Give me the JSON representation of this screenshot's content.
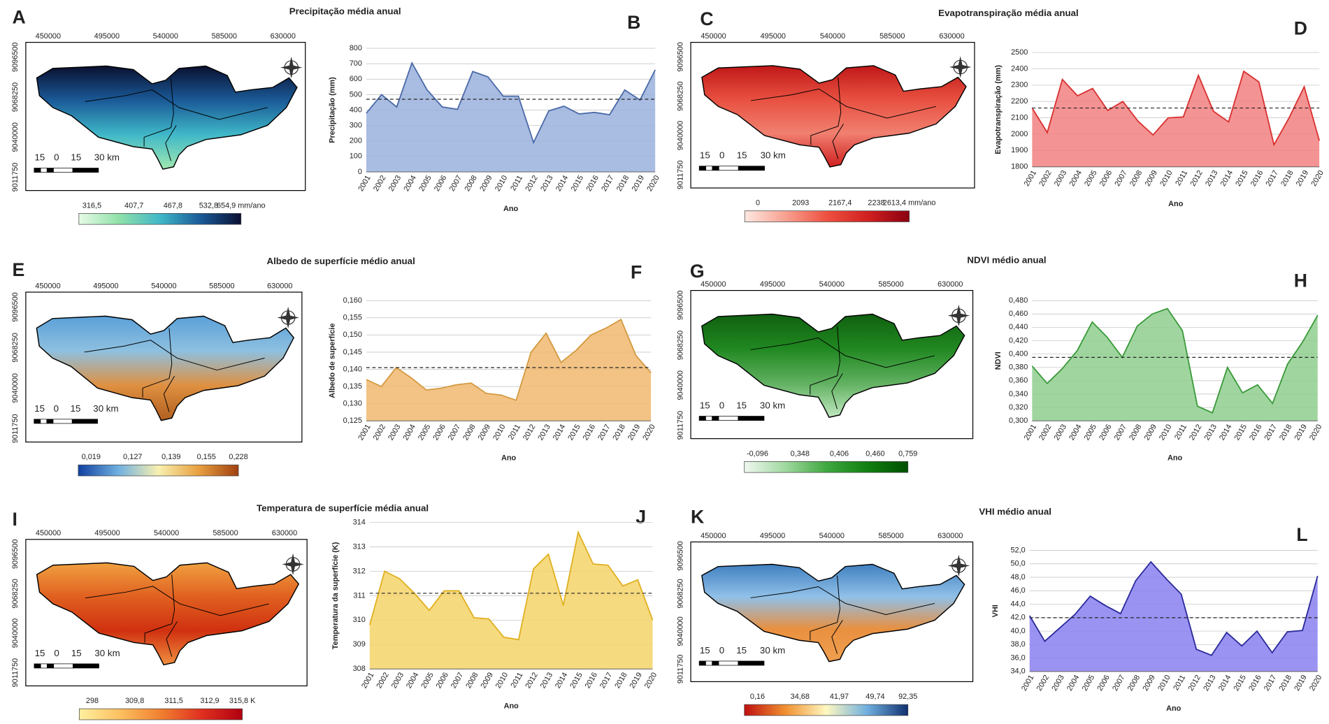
{
  "maps": [
    {
      "letter": "A",
      "title": "Precipitação média anual",
      "xticks": [
        450000,
        495000,
        540000,
        585000,
        630000
      ],
      "yticks": [
        9096500,
        9068250,
        9040000,
        9011750
      ],
      "scale_labels": [
        15,
        0,
        15,
        "30 km"
      ],
      "colorbar_labels": [
        "316,5",
        "407,7",
        "467,8",
        "532,8",
        "654,9 mm/ano"
      ],
      "colorbar_colors": [
        "#e6fbe6",
        "#8fe0a8",
        "#40b8c8",
        "#1a5a98",
        "#0a1030"
      ],
      "fill_colors": [
        "#0a1030",
        "#1a5a98",
        "#40b8c8",
        "#a0e8b0"
      ]
    },
    {
      "letter": "C",
      "title": "Evapotranspiração média anual",
      "xticks": [
        450000,
        495000,
        540000,
        585000,
        630000
      ],
      "yticks": [
        9096500,
        9068250,
        9040000,
        9011750
      ],
      "scale_labels": [
        15,
        0,
        15,
        "30 km"
      ],
      "colorbar_labels": [
        "0",
        "2093",
        "2167,4",
        "2238",
        "2613,4 mm/ano"
      ],
      "colorbar_colors": [
        "#fde8e0",
        "#f8a090",
        "#ee5040",
        "#d02020",
        "#8a0010"
      ],
      "fill_colors": [
        "#c01818",
        "#e85040",
        "#f08070",
        "#d02020"
      ]
    },
    {
      "letter": "E",
      "title": "Albedo de superfície médio anual",
      "xticks": [
        450000,
        495000,
        540000,
        585000,
        630000
      ],
      "yticks": [
        9096500,
        9068250,
        9040000,
        9011750
      ],
      "scale_labels": [
        15,
        0,
        15,
        "30 km"
      ],
      "colorbar_labels": [
        "0,019",
        "0,127",
        "0,139",
        "0,155",
        "0,228"
      ],
      "colorbar_colors": [
        "#1040a0",
        "#70b0e0",
        "#f8f0b0",
        "#e8a040",
        "#a04010"
      ],
      "fill_colors": [
        "#5aa0d8",
        "#8ec0e0",
        "#e09040",
        "#b06020"
      ]
    },
    {
      "letter": "G",
      "title": "NDVI médio anual",
      "xticks": [
        450000,
        495000,
        540000,
        585000,
        630000
      ],
      "yticks": [
        9096500,
        9068250,
        9040000,
        9011750
      ],
      "scale_labels": [
        15,
        0,
        15,
        "30 km"
      ],
      "colorbar_labels": [
        "-0,096",
        "0,348",
        "0,406",
        "0,460",
        "0,759"
      ],
      "colorbar_colors": [
        "#f0f8f0",
        "#a0d8a0",
        "#40a840",
        "#108010",
        "#005000"
      ],
      "fill_colors": [
        "#106010",
        "#208820",
        "#60b060",
        "#c0e8c0"
      ]
    },
    {
      "letter": "I",
      "title": "Temperatura de superfície média anual",
      "xticks": [
        450000,
        495000,
        540000,
        585000,
        630000
      ],
      "yticks": [
        9096500,
        9068250,
        9040000,
        9011750
      ],
      "scale_labels": [
        15,
        0,
        15,
        "30 km"
      ],
      "colorbar_labels": [
        "298",
        "309,8",
        "311,5",
        "312,9",
        "315,8 K"
      ],
      "colorbar_colors": [
        "#fff0a0",
        "#fcc060",
        "#f08030",
        "#e03020",
        "#b00010"
      ],
      "fill_colors": [
        "#f0a040",
        "#e06020",
        "#d03010",
        "#f09040"
      ]
    },
    {
      "letter": "K",
      "title": "VHI médio anual",
      "xticks": [
        450000,
        495000,
        540000,
        585000,
        630000
      ],
      "yticks": [
        9096500,
        9068250,
        9040000,
        9011750
      ],
      "scale_labels": [
        15,
        0,
        15,
        "30 km"
      ],
      "colorbar_labels": [
        "0,16",
        "34,68",
        "41,97",
        "49,74",
        "92,35"
      ],
      "colorbar_colors": [
        "#c01010",
        "#f09030",
        "#fff8c0",
        "#70b0e0",
        "#103070"
      ],
      "fill_colors": [
        "#4080c0",
        "#90c0e8",
        "#e89040",
        "#f0a050"
      ]
    }
  ],
  "chart_data": [
    {
      "type": "area",
      "letter": "B",
      "y_label": "Precipitação (mm)",
      "x_label": "Ano",
      "categories": [
        "2001",
        "2002",
        "2003",
        "2004",
        "2005",
        "2006",
        "2007",
        "2008",
        "2009",
        "2010",
        "2011",
        "2012",
        "2013",
        "2014",
        "2015",
        "2016",
        "2017",
        "2018",
        "2019",
        "2020"
      ],
      "values": [
        380,
        500,
        420,
        705,
        530,
        420,
        405,
        650,
        615,
        490,
        490,
        190,
        395,
        425,
        375,
        385,
        370,
        530,
        465,
        660
      ],
      "mean": 470,
      "color": "#9ab0dc",
      "line_color": "#4a6aa8",
      "ylim": [
        0,
        800
      ],
      "yticks": [
        0,
        100,
        200,
        300,
        400,
        500,
        600,
        700,
        800
      ],
      "grid": true
    },
    {
      "type": "area",
      "letter": "D",
      "y_label": "Evapotranspiração (mm)",
      "x_label": "Ano",
      "categories": [
        "2001",
        "2002",
        "2003",
        "2004",
        "2005",
        "2006",
        "2007",
        "2008",
        "2009",
        "2010",
        "2011",
        "2012",
        "2013",
        "2014",
        "2015",
        "2016",
        "2017",
        "2018",
        "2019",
        "2020"
      ],
      "values": [
        2160,
        2010,
        2335,
        2235,
        2280,
        2145,
        2200,
        2080,
        1995,
        2100,
        2105,
        2360,
        2140,
        2075,
        2385,
        2320,
        1935,
        2100,
        2290,
        1960
      ],
      "mean": 2160,
      "color": "#f28080",
      "line_color": "#d83030",
      "ylim": [
        1800,
        2500
      ],
      "yticks": [
        1800,
        1900,
        2000,
        2100,
        2200,
        2300,
        2400,
        2500
      ],
      "grid": true
    },
    {
      "type": "area",
      "letter": "F",
      "y_label": "Albedo de superfície",
      "x_label": "Ano",
      "categories": [
        "2001",
        "2002",
        "2003",
        "2004",
        "2005",
        "2006",
        "2007",
        "2008",
        "2009",
        "2010",
        "2011",
        "2012",
        "2013",
        "2014",
        "2015",
        "2016",
        "2017",
        "2018",
        "2019",
        "2020"
      ],
      "values": [
        0.137,
        0.135,
        0.1405,
        0.1375,
        0.134,
        0.1345,
        0.1355,
        0.136,
        0.133,
        0.1325,
        0.131,
        0.145,
        0.1505,
        0.142,
        0.1455,
        0.15,
        0.152,
        0.1545,
        0.144,
        0.139
      ],
      "mean": 0.1405,
      "color": "#f0b870",
      "line_color": "#d49a40",
      "ylim": [
        0.125,
        0.16
      ],
      "yticks": [
        {
          "value": 0.125,
          "label": "0,125"
        },
        {
          "value": 0.13,
          "label": "0,130"
        },
        {
          "value": 0.135,
          "label": "0,135"
        },
        {
          "value": 0.14,
          "label": "0,140"
        },
        {
          "value": 0.145,
          "label": "0,145"
        },
        {
          "value": 0.15,
          "label": "0,150"
        },
        {
          "value": 0.155,
          "label": "0,155"
        },
        {
          "value": 0.16,
          "label": "0,160"
        }
      ],
      "grid": true
    },
    {
      "type": "area",
      "letter": "H",
      "y_label": "NDVI",
      "x_label": "Ano",
      "categories": [
        "2001",
        "2002",
        "2003",
        "2004",
        "2005",
        "2006",
        "2007",
        "2008",
        "2009",
        "2010",
        "2011",
        "2012",
        "2013",
        "2014",
        "2015",
        "2016",
        "2017",
        "2018",
        "2019",
        "2020"
      ],
      "values": [
        0.382,
        0.356,
        0.378,
        0.405,
        0.448,
        0.425,
        0.395,
        0.442,
        0.46,
        0.468,
        0.435,
        0.322,
        0.312,
        0.38,
        0.342,
        0.354,
        0.326,
        0.385,
        0.418,
        0.458
      ],
      "mean": 0.395,
      "color": "#8fce8f",
      "line_color": "#3a9a3a",
      "ylim": [
        0.3,
        0.48
      ],
      "yticks": [
        {
          "value": 0.3,
          "label": "0,300"
        },
        {
          "value": 0.32,
          "label": "0,320"
        },
        {
          "value": 0.34,
          "label": "0,340"
        },
        {
          "value": 0.36,
          "label": "0,360"
        },
        {
          "value": 0.38,
          "label": "0,380"
        },
        {
          "value": 0.4,
          "label": "0,400"
        },
        {
          "value": 0.42,
          "label": "0,420"
        },
        {
          "value": 0.44,
          "label": "0,440"
        },
        {
          "value": 0.46,
          "label": "0,460"
        },
        {
          "value": 0.48,
          "label": "0,480"
        }
      ],
      "grid": true
    },
    {
      "type": "area",
      "letter": "J",
      "y_label": "Temperatura da superfície (K)",
      "x_label": "Ano",
      "categories": [
        "2001",
        "2002",
        "2003",
        "2004",
        "2005",
        "2006",
        "2007",
        "2008",
        "2009",
        "2010",
        "2011",
        "2012",
        "2013",
        "2014",
        "2015",
        "2016",
        "2017",
        "2018",
        "2019",
        "2020"
      ],
      "values": [
        309.8,
        312.0,
        311.7,
        311.1,
        310.4,
        311.2,
        311.2,
        310.1,
        310.05,
        309.3,
        309.2,
        312.1,
        312.7,
        310.6,
        313.6,
        312.3,
        312.25,
        311.4,
        311.65,
        310.0
      ],
      "mean": 311.1,
      "color": "#f5d36a",
      "line_color": "#e0b020",
      "ylim": [
        308,
        314
      ],
      "yticks": [
        308,
        309,
        310,
        311,
        312,
        313,
        314
      ],
      "grid": true
    },
    {
      "type": "area",
      "letter": "L",
      "y_label": "VHI",
      "x_label": "Ano",
      "categories": [
        "2001",
        "2002",
        "2003",
        "2004",
        "2005",
        "2006",
        "2007",
        "2008",
        "2009",
        "2010",
        "2011",
        "2012",
        "2013",
        "2014",
        "2015",
        "2016",
        "2017",
        "2018",
        "2019",
        "2020"
      ],
      "values": [
        42.3,
        38.5,
        40.5,
        42.5,
        45.2,
        43.8,
        42.6,
        47.5,
        50.3,
        47.8,
        45.5,
        37.3,
        36.4,
        39.8,
        37.8,
        40.0,
        36.8,
        39.9,
        40.1,
        48.2
      ],
      "mean": 42,
      "color": "#8a80f0",
      "line_color": "#2a2a9a",
      "ylim": [
        34,
        52
      ],
      "yticks": [
        {
          "value": 34,
          "label": "34,0"
        },
        {
          "value": 36,
          "label": "36,0"
        },
        {
          "value": 38,
          "label": "38,0"
        },
        {
          "value": 40,
          "label": "40,0"
        },
        {
          "value": 42,
          "label": "42,0"
        },
        {
          "value": 44,
          "label": "44,0"
        },
        {
          "value": 46,
          "label": "46,0"
        },
        {
          "value": 48,
          "label": "48,0"
        },
        {
          "value": 50,
          "label": "50,0"
        },
        {
          "value": 52,
          "label": "52,0"
        }
      ],
      "grid": true
    }
  ]
}
